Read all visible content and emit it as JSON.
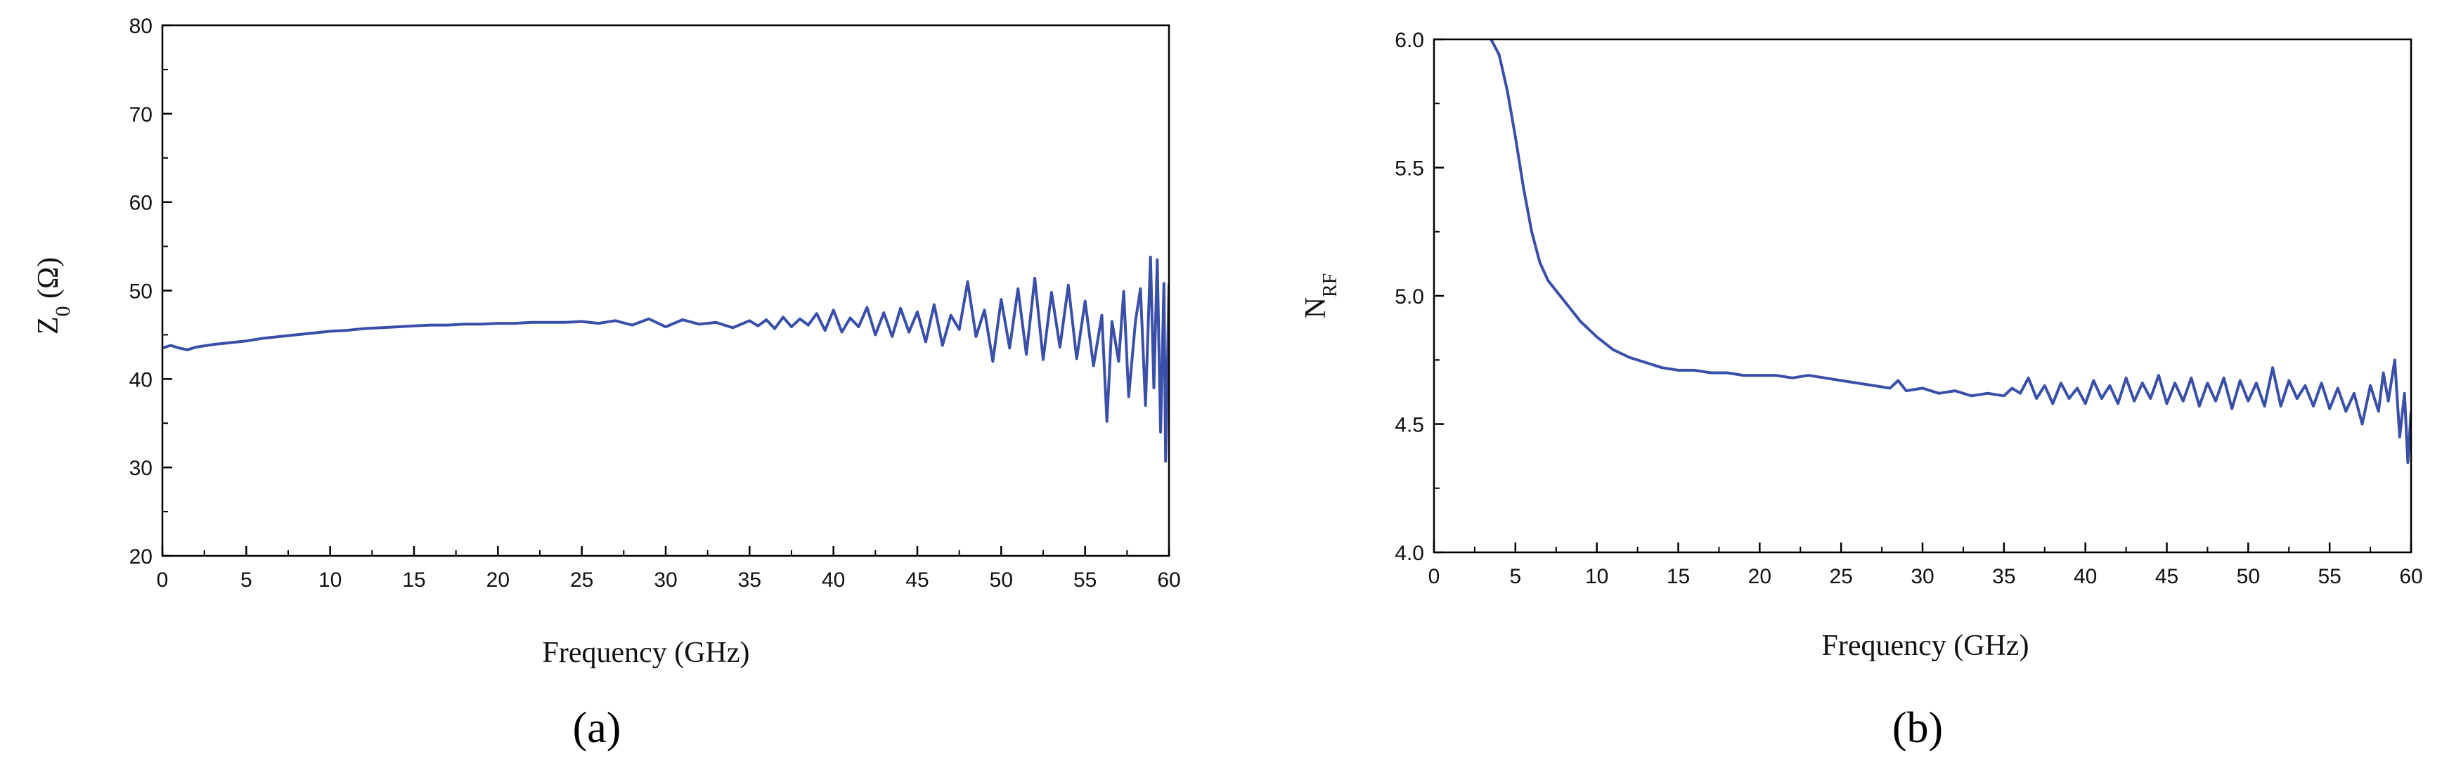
{
  "panels": [
    {
      "label": "(a)"
    },
    {
      "label": "(b)"
    }
  ],
  "chart_data": [
    {
      "type": "line",
      "panel": "(a)",
      "xlabel": "Frequency (GHz)",
      "ylabel_main": "Z",
      "ylabel_sub": "0",
      "ylabel_rest": " (Ω)",
      "xlim": [
        0,
        60
      ],
      "ylim": [
        20,
        80
      ],
      "xticks": [
        0,
        5,
        10,
        15,
        20,
        25,
        30,
        35,
        40,
        45,
        50,
        55,
        60
      ],
      "yticks": [
        20,
        30,
        40,
        50,
        60,
        70,
        80
      ],
      "grid": false,
      "line_color": "#3a4fa8",
      "series": [
        {
          "x": [
            0,
            0.5,
            1,
            1.5,
            2,
            3,
            4,
            5,
            6,
            7,
            8,
            9,
            10,
            11,
            12,
            13,
            14,
            15,
            16,
            17,
            18,
            19,
            20,
            21,
            22,
            23,
            24,
            25,
            26,
            27,
            28,
            29,
            30,
            31,
            32,
            33,
            34,
            35,
            35.5,
            36,
            36.5,
            37,
            37.5,
            38,
            38.5,
            39,
            39.5,
            40,
            40.5,
            41,
            41.5,
            42,
            42.5,
            43,
            43.5,
            44,
            44.5,
            45,
            45.5,
            46,
            46.5,
            47,
            47.5,
            48,
            48.5,
            49,
            49.5,
            50,
            50.5,
            51,
            51.5,
            52,
            52.5,
            53,
            53.5,
            54,
            54.5,
            55,
            55.5,
            56,
            56.3,
            56.6,
            57,
            57.3,
            57.6,
            58,
            58.3,
            58.6,
            58.9,
            59.1,
            59.3,
            59.5,
            59.7,
            59.8,
            60
          ],
          "y": [
            43.5,
            43.8,
            43.5,
            43.3,
            43.6,
            43.9,
            44.1,
            44.3,
            44.6,
            44.8,
            45,
            45.2,
            45.4,
            45.5,
            45.7,
            45.8,
            45.9,
            46,
            46.1,
            46.1,
            46.2,
            46.2,
            46.3,
            46.3,
            46.4,
            46.4,
            46.4,
            46.5,
            46.3,
            46.6,
            46.1,
            46.8,
            45.9,
            46.7,
            46.2,
            46.4,
            45.8,
            46.6,
            46,
            46.7,
            45.7,
            47,
            45.9,
            46.8,
            46.1,
            47.4,
            45.5,
            47.8,
            45.3,
            46.9,
            45.9,
            48.1,
            45,
            47.5,
            44.8,
            48,
            45.3,
            47.6,
            44.2,
            48.4,
            43.8,
            47.2,
            45.6,
            51,
            44.8,
            47.8,
            42,
            49,
            43.5,
            50.2,
            42.8,
            51.4,
            42.2,
            49.8,
            43.6,
            50.6,
            42.3,
            48.8,
            41.5,
            47.2,
            35.2,
            46.5,
            42,
            49.9,
            38,
            46.5,
            50.2,
            37,
            53.8,
            39,
            53.5,
            34,
            50.8,
            30.7,
            50.8
          ]
        }
      ]
    },
    {
      "type": "line",
      "panel": "(b)",
      "xlabel": "Frequency (GHz)",
      "ylabel_main": "N",
      "ylabel_sub": "RF",
      "ylabel_rest": "",
      "xlim": [
        0,
        60
      ],
      "ylim": [
        4.0,
        6.0
      ],
      "xticks": [
        0,
        5,
        10,
        15,
        20,
        25,
        30,
        35,
        40,
        45,
        50,
        55,
        60
      ],
      "yticks": [
        4.0,
        4.5,
        5.0,
        5.5,
        6.0
      ],
      "grid": false,
      "line_color": "#3a4fa8",
      "series": [
        {
          "x": [
            3.5,
            4,
            4.5,
            5,
            5.5,
            6,
            6.5,
            7,
            7.5,
            8,
            9,
            10,
            11,
            12,
            13,
            14,
            15,
            16,
            17,
            18,
            19,
            20,
            21,
            22,
            23,
            24,
            25,
            26,
            27,
            28,
            28.5,
            29,
            30,
            31,
            32,
            33,
            34,
            35,
            35.5,
            36,
            36.5,
            37,
            37.5,
            38,
            38.5,
            39,
            39.5,
            40,
            40.5,
            41,
            41.5,
            42,
            42.5,
            43,
            43.5,
            44,
            44.5,
            45,
            45.5,
            46,
            46.5,
            47,
            47.5,
            48,
            48.5,
            49,
            49.5,
            50,
            50.5,
            51,
            51.5,
            52,
            52.5,
            53,
            53.5,
            54,
            54.5,
            55,
            55.5,
            56,
            56.5,
            57,
            57.5,
            58,
            58.3,
            58.6,
            59,
            59.3,
            59.6,
            59.8,
            60
          ],
          "y": [
            6.0,
            5.94,
            5.8,
            5.62,
            5.42,
            5.25,
            5.13,
            5.06,
            5.02,
            4.98,
            4.9,
            4.84,
            4.79,
            4.76,
            4.74,
            4.72,
            4.71,
            4.71,
            4.7,
            4.7,
            4.69,
            4.69,
            4.69,
            4.68,
            4.69,
            4.68,
            4.67,
            4.66,
            4.65,
            4.64,
            4.67,
            4.63,
            4.64,
            4.62,
            4.63,
            4.61,
            4.62,
            4.61,
            4.64,
            4.62,
            4.68,
            4.6,
            4.65,
            4.58,
            4.66,
            4.6,
            4.64,
            4.58,
            4.67,
            4.6,
            4.65,
            4.58,
            4.68,
            4.59,
            4.66,
            4.6,
            4.69,
            4.58,
            4.66,
            4.59,
            4.68,
            4.57,
            4.66,
            4.59,
            4.68,
            4.56,
            4.67,
            4.59,
            4.66,
            4.57,
            4.72,
            4.57,
            4.67,
            4.6,
            4.65,
            4.57,
            4.66,
            4.56,
            4.64,
            4.55,
            4.62,
            4.5,
            4.65,
            4.55,
            4.7,
            4.59,
            4.75,
            4.45,
            4.62,
            4.35,
            4.55
          ]
        }
      ]
    }
  ]
}
